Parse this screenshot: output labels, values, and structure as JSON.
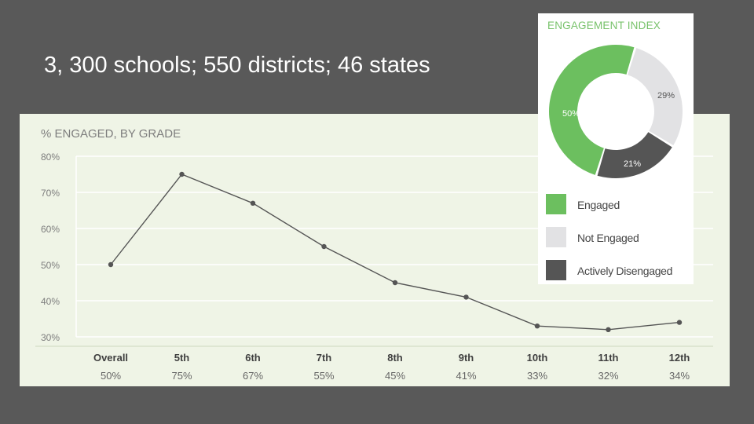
{
  "slide": {
    "title": "3, 300 schools; 550 districts; 46 states"
  },
  "colors": {
    "engaged": "#6cbf5f",
    "not_engaged": "#e2e2e4",
    "actively_disengaged": "#555555",
    "line": "#555555",
    "panel_bg": "#eff4e6",
    "accent_title": "#77c26a"
  },
  "chart_data": [
    {
      "type": "line",
      "title": "% ENGAGED, BY GRADE",
      "xlabel": "",
      "ylabel": "",
      "categories": [
        "Overall",
        "5th",
        "6th",
        "7th",
        "8th",
        "9th",
        "10th",
        "11th",
        "12th"
      ],
      "value_labels": [
        "50%",
        "75%",
        "67%",
        "55%",
        "45%",
        "41%",
        "33%",
        "32%",
        "34%"
      ],
      "series": [
        {
          "values": [
            50,
            75,
            67,
            55,
            45,
            41,
            33,
            32,
            34
          ]
        }
      ],
      "ylim": [
        30,
        80
      ],
      "yticks": [
        80,
        70,
        60,
        50,
        40,
        30
      ],
      "ytick_labels": [
        "80%",
        "70%",
        "60%",
        "50%",
        "40%",
        "30%"
      ],
      "grid": true
    },
    {
      "type": "pie",
      "title": "ENGAGEMENT INDEX",
      "donut": true,
      "categories": [
        "Engaged",
        "Not Engaged",
        "Actively Disengaged"
      ],
      "values": [
        50,
        29,
        21
      ],
      "value_labels": [
        "50%",
        "29%",
        "21%"
      ],
      "legend": "bottom"
    }
  ]
}
